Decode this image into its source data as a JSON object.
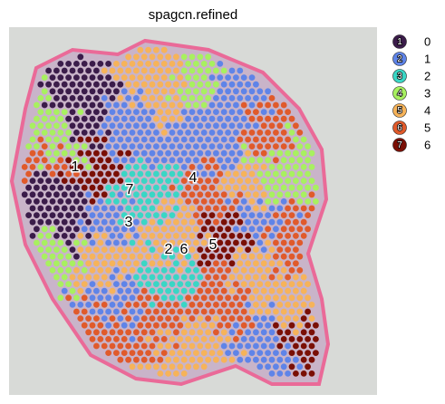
{
  "title": "spagcn.refined",
  "legend": [
    {
      "badge": "1",
      "label": "0",
      "color": "#3b1c4a"
    },
    {
      "badge": "2",
      "label": "1",
      "color": "#5f84e8"
    },
    {
      "badge": "3",
      "label": "2",
      "color": "#3ad6c5"
    },
    {
      "badge": "4",
      "label": "3",
      "color": "#a8f060"
    },
    {
      "badge": "5",
      "label": "4",
      "color": "#f6b35a"
    },
    {
      "badge": "6",
      "label": "5",
      "color": "#e05a2b"
    },
    {
      "badge": "7",
      "label": "6",
      "color": "#7a0f05"
    }
  ],
  "annotations": [
    "1",
    "7",
    "3",
    "4",
    "2",
    "6",
    "5"
  ]
}
